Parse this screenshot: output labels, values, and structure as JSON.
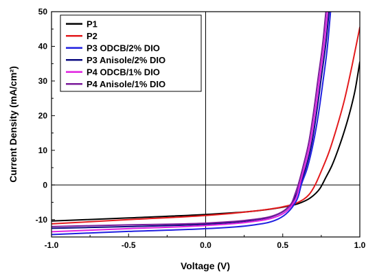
{
  "chart_data": {
    "type": "line",
    "title": "",
    "xlabel": "Voltage (V)",
    "ylabel": "Current Density (mA/cm²)",
    "xlim": [
      -1.0,
      1.0
    ],
    "ylim": [
      -15,
      50
    ],
    "x_ticks": [
      -1.0,
      -0.5,
      0.0,
      0.5,
      1.0
    ],
    "x_tick_labels": [
      "-1.0",
      "-0.5",
      "0.0",
      "0.5",
      "1.0"
    ],
    "y_ticks": [
      -10,
      0,
      10,
      20,
      30,
      40,
      50
    ],
    "y_tick_labels": [
      "-10",
      "0",
      "10",
      "20",
      "30",
      "40",
      "50"
    ],
    "grid": false,
    "zero_lines": true,
    "legend_position": "top-left",
    "series": [
      {
        "name": "P1",
        "color": "#000000",
        "points": [
          [
            -1.0,
            -10.4
          ],
          [
            -0.5,
            -9.5
          ],
          [
            0.0,
            -8.5
          ],
          [
            0.3,
            -7.6
          ],
          [
            0.5,
            -6.4
          ],
          [
            0.6,
            -5.4
          ],
          [
            0.68,
            -3.7
          ],
          [
            0.74,
            -1.1
          ],
          [
            0.78,
            2.2
          ],
          [
            0.82,
            5.7
          ],
          [
            0.86,
            10.3
          ],
          [
            0.9,
            15.6
          ],
          [
            0.94,
            21.8
          ],
          [
            0.97,
            27.5
          ],
          [
            1.0,
            35.5
          ]
        ]
      },
      {
        "name": "P2",
        "color": "#e31a1c",
        "points": [
          [
            -1.0,
            -11.2
          ],
          [
            -0.5,
            -10.0
          ],
          [
            0.0,
            -8.8
          ],
          [
            0.3,
            -7.6
          ],
          [
            0.5,
            -6.3
          ],
          [
            0.6,
            -5.0
          ],
          [
            0.67,
            -2.8
          ],
          [
            0.71,
            0.0
          ],
          [
            0.75,
            4.0
          ],
          [
            0.8,
            9.5
          ],
          [
            0.85,
            16.5
          ],
          [
            0.9,
            24.5
          ],
          [
            0.95,
            34.5
          ],
          [
            1.0,
            45.5
          ]
        ]
      },
      {
        "name": "P3 ODCB/2% DIO",
        "color": "#1f1fe0",
        "points": [
          [
            -1.0,
            -14.3
          ],
          [
            -0.5,
            -13.4
          ],
          [
            0.0,
            -12.6
          ],
          [
            0.3,
            -11.6
          ],
          [
            0.45,
            -10.2
          ],
          [
            0.52,
            -8.4
          ],
          [
            0.57,
            -5.9
          ],
          [
            0.6,
            -3.4
          ],
          [
            0.62,
            0.0
          ],
          [
            0.66,
            5.0
          ],
          [
            0.7,
            12.5
          ],
          [
            0.73,
            20.0
          ],
          [
            0.76,
            29.5
          ],
          [
            0.79,
            40.0
          ],
          [
            0.81,
            50.0
          ]
        ]
      },
      {
        "name": "P3 Anisole/2% DIO",
        "color": "#0a0a80",
        "points": [
          [
            -1.0,
            -12.5
          ],
          [
            -0.5,
            -12.0
          ],
          [
            0.0,
            -11.3
          ],
          [
            0.3,
            -10.2
          ],
          [
            0.45,
            -8.8
          ],
          [
            0.52,
            -7.1
          ],
          [
            0.56,
            -5.1
          ],
          [
            0.59,
            -2.6
          ],
          [
            0.61,
            0.0
          ],
          [
            0.65,
            5.0
          ],
          [
            0.69,
            12.5
          ],
          [
            0.72,
            21.0
          ],
          [
            0.75,
            31.0
          ],
          [
            0.78,
            41.0
          ],
          [
            0.8,
            50.0
          ]
        ]
      },
      {
        "name": "P4 ODCB/1% DIO",
        "color": "#e020e0",
        "points": [
          [
            -1.0,
            -13.5
          ],
          [
            -0.5,
            -12.6
          ],
          [
            0.0,
            -11.7
          ],
          [
            0.3,
            -10.6
          ],
          [
            0.45,
            -9.3
          ],
          [
            0.52,
            -7.7
          ],
          [
            0.56,
            -5.8
          ],
          [
            0.59,
            -3.3
          ],
          [
            0.61,
            0.0
          ],
          [
            0.64,
            5.0
          ],
          [
            0.68,
            12.5
          ],
          [
            0.71,
            21.0
          ],
          [
            0.74,
            31.0
          ],
          [
            0.77,
            41.0
          ],
          [
            0.79,
            50.0
          ]
        ]
      },
      {
        "name": "P4 Anisole/1% DIO",
        "color": "#7a1a9a",
        "points": [
          [
            -1.0,
            -12.0
          ],
          [
            -0.5,
            -11.5
          ],
          [
            0.0,
            -11.0
          ],
          [
            0.3,
            -10.0
          ],
          [
            0.45,
            -8.7
          ],
          [
            0.52,
            -7.0
          ],
          [
            0.56,
            -5.0
          ],
          [
            0.58,
            -2.6
          ],
          [
            0.6,
            0.0
          ],
          [
            0.63,
            5.0
          ],
          [
            0.67,
            12.5
          ],
          [
            0.7,
            21.0
          ],
          [
            0.73,
            31.0
          ],
          [
            0.76,
            41.0
          ],
          [
            0.78,
            50.0
          ]
        ]
      }
    ]
  }
}
